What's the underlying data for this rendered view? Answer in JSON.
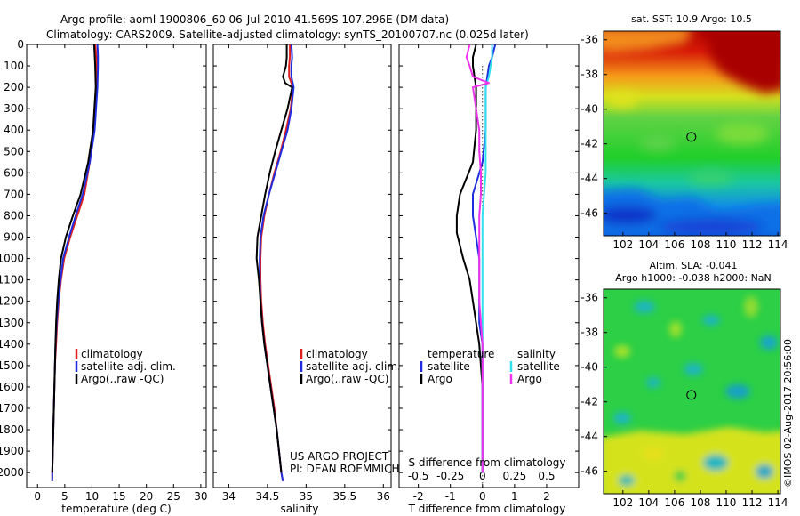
{
  "header": {
    "line1": "Argo profile: aoml 1900806_60 06-Jul-2010 41.569S 107.296E (DM data)",
    "line2": "Climatology: CARS2009. Satellite-adjusted climatology: synTS_20100707.nc (0.025d later)"
  },
  "credits": {
    "project": "US ARGO PROJECT",
    "pi": "PI: DEAN ROEMMICH",
    "watermark": "©IMOS 02-Aug-2017 20:56:00"
  },
  "colors": {
    "climatology": "#e02020",
    "satellite": "#1f2de0",
    "argo": "#000000",
    "sal_satellite": "#33e0ee",
    "sal_argo": "#ee33ee"
  },
  "chart_data": [
    {
      "type": "line",
      "id": "temperature",
      "xlabel": "temperature (deg C)",
      "ylabel": "",
      "xlim": [
        -2,
        31
      ],
      "ylim": [
        2070,
        0
      ],
      "x_ticks": [
        "0",
        "5",
        "10",
        "15",
        "20",
        "25",
        "30"
      ],
      "y_ticks": [
        "0",
        "100",
        "200",
        "300",
        "400",
        "500",
        "600",
        "700",
        "800",
        "900",
        "1000",
        "1100",
        "1200",
        "1300",
        "1400",
        "1500",
        "1600",
        "1700",
        "1800",
        "1900",
        "2000"
      ],
      "legend": [
        "climatology",
        "satellite-adj. clim.",
        "Argo(..raw -QC)"
      ],
      "legend_position": "lower-right",
      "series": [
        {
          "name": "climatology",
          "color_key": "climatology",
          "points": [
            [
              10.6,
              0
            ],
            [
              10.8,
              50
            ],
            [
              10.9,
              100
            ],
            [
              10.9,
              200
            ],
            [
              10.4,
              400
            ],
            [
              9.6,
              550
            ],
            [
              8.6,
              700
            ],
            [
              7.3,
              800
            ],
            [
              6.0,
              900
            ],
            [
              4.9,
              1000
            ],
            [
              4.3,
              1100
            ],
            [
              3.9,
              1200
            ],
            [
              3.6,
              1300
            ],
            [
              3.4,
              1400
            ],
            [
              3.2,
              1500
            ],
            [
              3.1,
              1600
            ],
            [
              3.0,
              1700
            ],
            [
              2.9,
              1800
            ],
            [
              2.8,
              1900
            ],
            [
              2.7,
              2000
            ],
            [
              2.7,
              2040
            ]
          ]
        },
        {
          "name": "satellite-adj. clim.",
          "color_key": "satellite",
          "points": [
            [
              11.0,
              0
            ],
            [
              11.1,
              50
            ],
            [
              11.1,
              100
            ],
            [
              11.0,
              200
            ],
            [
              10.5,
              400
            ],
            [
              9.6,
              550
            ],
            [
              8.3,
              700
            ],
            [
              7.0,
              800
            ],
            [
              5.8,
              900
            ],
            [
              4.7,
              1000
            ],
            [
              4.2,
              1100
            ],
            [
              3.8,
              1200
            ],
            [
              3.5,
              1300
            ],
            [
              3.3,
              1400
            ],
            [
              3.2,
              1500
            ],
            [
              3.1,
              1600
            ],
            [
              3.0,
              1700
            ],
            [
              2.9,
              1800
            ],
            [
              2.8,
              1900
            ],
            [
              2.7,
              2000
            ],
            [
              2.7,
              2040
            ]
          ]
        },
        {
          "name": "Argo(..raw -QC)",
          "color_key": "argo",
          "points": [
            [
              10.4,
              0
            ],
            [
              10.5,
              50
            ],
            [
              10.6,
              100
            ],
            [
              10.7,
              200
            ],
            [
              10.2,
              400
            ],
            [
              9.3,
              550
            ],
            [
              7.9,
              700
            ],
            [
              6.5,
              800
            ],
            [
              5.2,
              900
            ],
            [
              4.3,
              1000
            ],
            [
              3.9,
              1100
            ],
            [
              3.6,
              1200
            ],
            [
              3.4,
              1300
            ],
            [
              3.3,
              1400
            ],
            [
              3.2,
              1500
            ],
            [
              3.1,
              1600
            ],
            [
              3.0,
              1700
            ],
            [
              2.9,
              1800
            ],
            [
              2.8,
              1900
            ],
            [
              2.7,
              2000
            ]
          ]
        }
      ]
    },
    {
      "type": "line",
      "id": "salinity",
      "xlabel": "salinity",
      "ylabel": "",
      "xlim": [
        33.8,
        36.1
      ],
      "ylim": [
        2070,
        0
      ],
      "x_ticks": [
        "34",
        "34.5",
        "35",
        "35.5",
        "36"
      ],
      "legend": [
        "climatology",
        "satellite-adj. clim.",
        "Argo(..raw -QC)"
      ],
      "legend_position": "lower-right",
      "series": [
        {
          "name": "climatology",
          "color_key": "climatology",
          "points": [
            [
              34.79,
              0
            ],
            [
              34.79,
              60
            ],
            [
              34.78,
              100
            ],
            [
              34.78,
              150
            ],
            [
              34.83,
              200
            ],
            [
              34.8,
              300
            ],
            [
              34.74,
              400
            ],
            [
              34.67,
              500
            ],
            [
              34.59,
              600
            ],
            [
              34.52,
              700
            ],
            [
              34.46,
              800
            ],
            [
              34.42,
              900
            ],
            [
              34.41,
              1000
            ],
            [
              34.41,
              1100
            ],
            [
              34.42,
              1200
            ],
            [
              34.44,
              1300
            ],
            [
              34.47,
              1400
            ],
            [
              34.51,
              1500
            ],
            [
              34.55,
              1600
            ],
            [
              34.59,
              1700
            ],
            [
              34.62,
              1800
            ],
            [
              34.65,
              1900
            ],
            [
              34.68,
              2000
            ],
            [
              34.7,
              2040
            ]
          ]
        },
        {
          "name": "satellite-adj. clim.",
          "color_key": "satellite",
          "points": [
            [
              34.81,
              0
            ],
            [
              34.82,
              60
            ],
            [
              34.81,
              100
            ],
            [
              34.81,
              150
            ],
            [
              34.84,
              200
            ],
            [
              34.81,
              300
            ],
            [
              34.76,
              400
            ],
            [
              34.68,
              500
            ],
            [
              34.6,
              600
            ],
            [
              34.52,
              700
            ],
            [
              34.45,
              800
            ],
            [
              34.41,
              900
            ],
            [
              34.4,
              1000
            ],
            [
              34.4,
              1100
            ],
            [
              34.41,
              1200
            ],
            [
              34.43,
              1300
            ],
            [
              34.46,
              1400
            ],
            [
              34.5,
              1500
            ],
            [
              34.54,
              1600
            ],
            [
              34.58,
              1700
            ],
            [
              34.62,
              1800
            ],
            [
              34.65,
              1900
            ],
            [
              34.68,
              2000
            ],
            [
              34.7,
              2040
            ]
          ]
        },
        {
          "name": "Argo(..raw -QC)",
          "color_key": "argo",
          "points": [
            [
              34.75,
              0
            ],
            [
              34.75,
              60
            ],
            [
              34.74,
              100
            ],
            [
              34.7,
              150
            ],
            [
              34.73,
              180
            ],
            [
              34.82,
              200
            ],
            [
              34.76,
              300
            ],
            [
              34.68,
              400
            ],
            [
              34.6,
              500
            ],
            [
              34.53,
              600
            ],
            [
              34.47,
              700
            ],
            [
              34.42,
              800
            ],
            [
              34.37,
              900
            ],
            [
              34.36,
              1000
            ],
            [
              34.39,
              1100
            ],
            [
              34.41,
              1200
            ],
            [
              34.43,
              1300
            ],
            [
              34.46,
              1400
            ],
            [
              34.5,
              1500
            ],
            [
              34.54,
              1600
            ],
            [
              34.58,
              1700
            ],
            [
              34.62,
              1800
            ],
            [
              34.65,
              1900
            ],
            [
              34.68,
              2000
            ]
          ]
        }
      ]
    },
    {
      "type": "line",
      "id": "difference",
      "xlabel": "T difference from climatology",
      "xlabel_top": "S difference from climatology",
      "ylabel": "",
      "xlim": [
        -2.6,
        3.0
      ],
      "ylim": [
        2070,
        0
      ],
      "x_ticks": [
        "-2",
        "-1",
        "0",
        "1",
        "2"
      ],
      "x_ticks_top": [
        {
          "label": "-0.5",
          "at": -2
        },
        {
          "label": "-0.25",
          "at": -1
        },
        {
          "label": "0",
          "at": 0
        },
        {
          "label": "0.25",
          "at": 1
        },
        {
          "label": "0.5",
          "at": 2
        }
      ],
      "legend_groups": [
        {
          "title": "temperature",
          "entries": [
            "satellite",
            "Argo"
          ]
        },
        {
          "title": "salinity",
          "entries": [
            "satellite",
            "Argo"
          ]
        }
      ],
      "zero_line": "dotted",
      "series": [
        {
          "name": "satellite",
          "group": "temperature",
          "color_key": "satellite",
          "points": [
            [
              0.4,
              0
            ],
            [
              0.3,
              60
            ],
            [
              0.2,
              100
            ],
            [
              0.1,
              200
            ],
            [
              0.1,
              400
            ],
            [
              0.0,
              550
            ],
            [
              -0.3,
              700
            ],
            [
              -0.3,
              800
            ],
            [
              -0.2,
              900
            ],
            [
              -0.1,
              1000
            ],
            [
              -0.1,
              1100
            ],
            [
              -0.1,
              1200
            ],
            [
              -0.1,
              1300
            ],
            [
              0.0,
              1400
            ],
            [
              0.0,
              1500
            ],
            [
              0.0,
              1600
            ],
            [
              0.0,
              1700
            ],
            [
              0.0,
              1800
            ],
            [
              0.0,
              1900
            ],
            [
              0.0,
              2000
            ]
          ]
        },
        {
          "name": "Argo",
          "group": "temperature",
          "color_key": "argo",
          "points": [
            [
              -0.2,
              0
            ],
            [
              -0.3,
              60
            ],
            [
              -0.3,
              100
            ],
            [
              -0.2,
              200
            ],
            [
              -0.2,
              400
            ],
            [
              -0.3,
              550
            ],
            [
              -0.7,
              700
            ],
            [
              -0.8,
              800
            ],
            [
              -0.8,
              880
            ],
            [
              -0.6,
              1000
            ],
            [
              -0.4,
              1100
            ],
            [
              -0.3,
              1200
            ],
            [
              -0.2,
              1300
            ],
            [
              -0.1,
              1400
            ],
            [
              -0.05,
              1500
            ],
            [
              0.0,
              1600
            ],
            [
              0.0,
              1800
            ],
            [
              0.0,
              2000
            ]
          ]
        },
        {
          "name": "satellite",
          "group": "salinity",
          "color_key": "sal_satellite",
          "points": [
            [
              0.3,
              0
            ],
            [
              0.3,
              60
            ],
            [
              0.2,
              150
            ],
            [
              0.1,
              200
            ],
            [
              0.1,
              300
            ],
            [
              0.1,
              400
            ],
            [
              0.1,
              500
            ],
            [
              0.1,
              600
            ],
            [
              0.05,
              700
            ],
            [
              0.0,
              800
            ],
            [
              0.0,
              1000
            ],
            [
              0.0,
              1200
            ],
            [
              0.0,
              1400
            ],
            [
              0.0,
              1600
            ],
            [
              0.0,
              1800
            ],
            [
              0.0,
              2000
            ]
          ]
        },
        {
          "name": "Argo",
          "group": "salinity",
          "color_key": "sal_argo",
          "points": [
            [
              -0.4,
              0
            ],
            [
              -0.5,
              60
            ],
            [
              -0.4,
              100
            ],
            [
              -0.3,
              150
            ],
            [
              0.2,
              180
            ],
            [
              -0.3,
              200
            ],
            [
              -0.2,
              300
            ],
            [
              -0.1,
              400
            ],
            [
              -0.1,
              500
            ],
            [
              -0.05,
              600
            ],
            [
              -0.05,
              700
            ],
            [
              -0.1,
              800
            ],
            [
              -0.1,
              900
            ],
            [
              -0.1,
              1000
            ],
            [
              -0.1,
              1100
            ],
            [
              -0.1,
              1200
            ],
            [
              -0.05,
              1300
            ],
            [
              0.0,
              1400
            ],
            [
              0.0,
              1600
            ],
            [
              0.0,
              1800
            ],
            [
              0.0,
              2000
            ]
          ]
        }
      ]
    },
    {
      "type": "heatmap",
      "id": "sst_map",
      "title": "sat. SST: 10.9  Argo: 10.5",
      "x_ticks": [
        "102",
        "104",
        "106",
        "108",
        "110",
        "112",
        "114"
      ],
      "y_ticks": [
        "-36",
        "-38",
        "-40",
        "-42",
        "-44",
        "-46"
      ],
      "xlim": [
        100.5,
        114.2
      ],
      "ylim": [
        -47.3,
        -35.5
      ],
      "marker": {
        "lon": 107.3,
        "lat": -41.6
      },
      "colorscale": "jet"
    },
    {
      "type": "heatmap",
      "id": "sla_map",
      "title": "Altim. SLA: -0.041",
      "subtitle": "Argo h1000: -0.038  h2000: NaN",
      "x_ticks": [
        "102",
        "104",
        "106",
        "108",
        "110",
        "112",
        "114"
      ],
      "y_ticks": [
        "-36",
        "-38",
        "-40",
        "-42",
        "-44",
        "-46"
      ],
      "xlim": [
        100.5,
        114.2
      ],
      "ylim": [
        -47.3,
        -35.5
      ],
      "marker": {
        "lon": 107.3,
        "lat": -41.6
      },
      "colorscale": "jet"
    }
  ]
}
